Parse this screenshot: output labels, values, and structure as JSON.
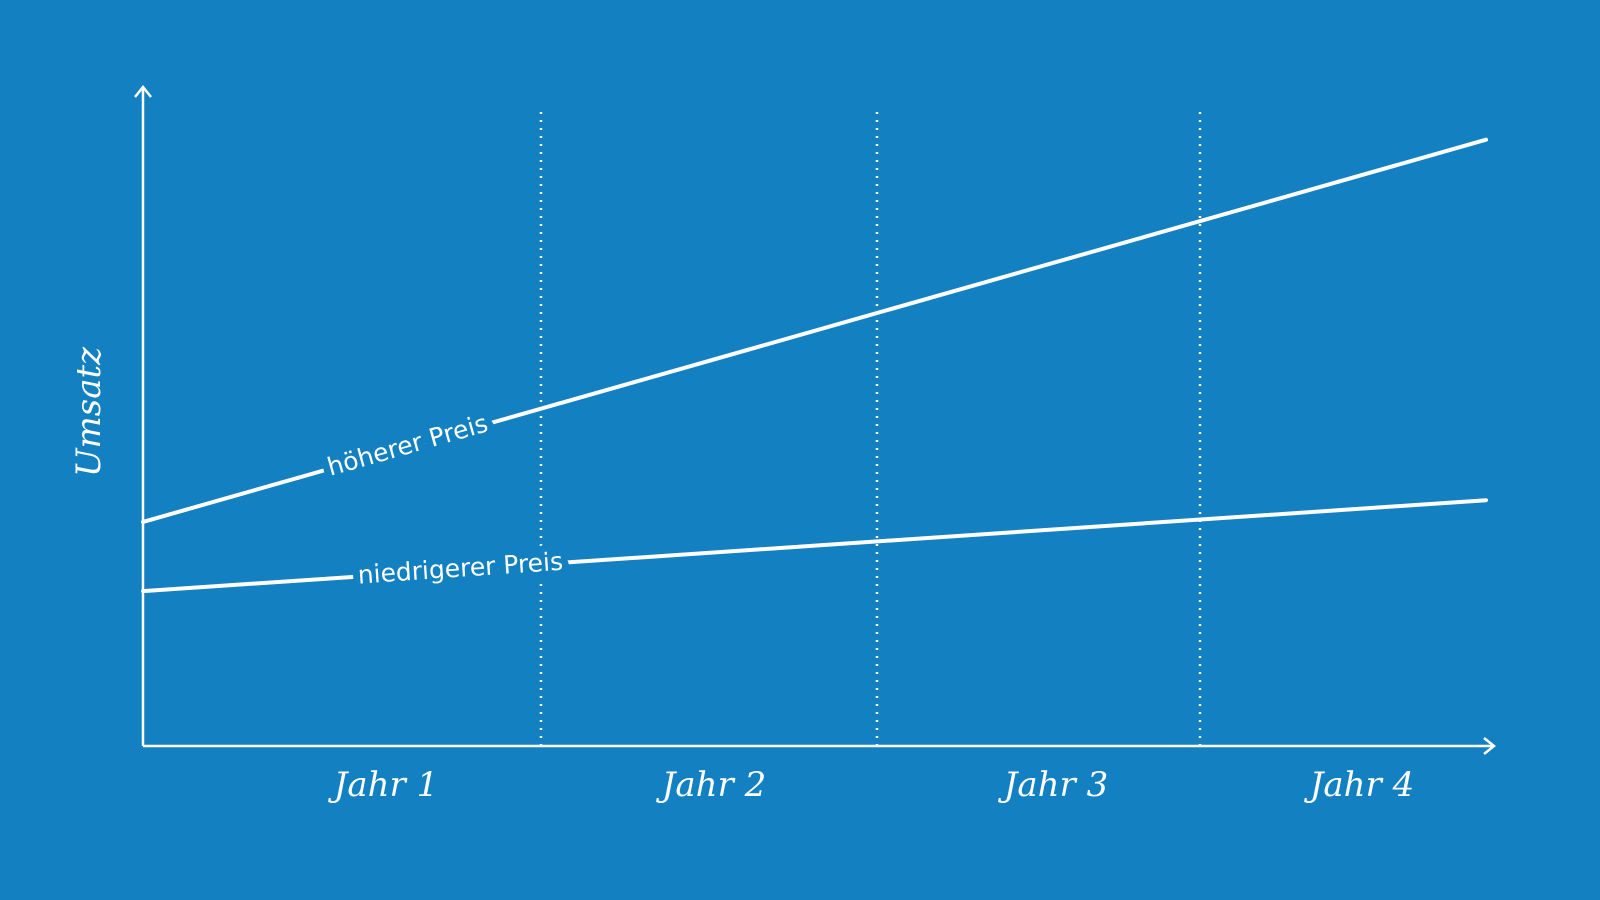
{
  "chart_data": {
    "type": "line",
    "y_label": "Umsatz",
    "periods": [
      "Jahr 1",
      "Jahr 2",
      "Jahr 3",
      "Jahr 4"
    ],
    "x": [
      0,
      4
    ],
    "xlim": [
      0,
      4
    ],
    "ylim": [
      0,
      100
    ],
    "series": [
      {
        "name": "höherer Preis",
        "color": "#ffffff",
        "values": [
          34,
          92
        ]
      },
      {
        "name": "niedrigerer Preis",
        "color": "#ffffff",
        "values": [
          23.5,
          37.3
        ]
      }
    ]
  }
}
